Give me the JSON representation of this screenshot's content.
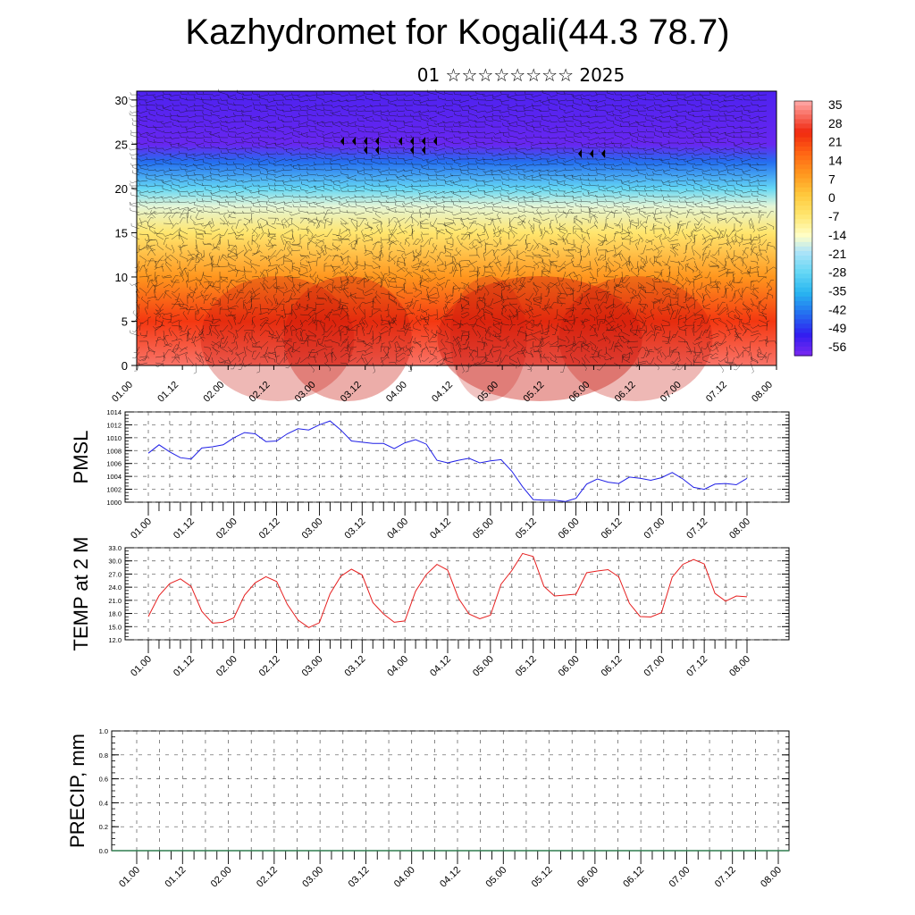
{
  "header": {
    "title": "Kazhydromet for Kogali(44.3 78.7)",
    "subtitle": "01 ☆☆☆☆☆☆☆☆ 2025"
  },
  "chart_data": [
    {
      "type": "heatmap",
      "title": "",
      "xlabel": "",
      "ylabel": "",
      "x_ticks": [
        "01.00",
        "01.12",
        "02.00",
        "02.12",
        "03.00",
        "03.12",
        "04.00",
        "04.12",
        "05.00",
        "05.12",
        "06.00",
        "06.12",
        "07.00",
        "07.12",
        "08.00"
      ],
      "y_ticks": [
        0,
        5,
        10,
        15,
        20,
        25,
        30
      ],
      "ylim": [
        0,
        31
      ],
      "colorbar_ticks": [
        35,
        28,
        21,
        14,
        7,
        0,
        -7,
        -14,
        -21,
        -28,
        -35,
        -42,
        -49,
        -56
      ],
      "colorbar_range": [
        -60,
        38
      ],
      "temperature_profile": [
        {
          "level": 0,
          "value": 33
        },
        {
          "level": 5,
          "value": 24
        },
        {
          "level": 10,
          "value": 10
        },
        {
          "level": 15,
          "value": -6
        },
        {
          "level": 18,
          "value": -16
        },
        {
          "level": 20,
          "value": -28
        },
        {
          "level": 23,
          "value": -44
        },
        {
          "level": 25,
          "value": -58
        },
        {
          "level": 31,
          "value": -55
        }
      ],
      "overlay": "wind barbs"
    },
    {
      "type": "line",
      "ylabel": "PMSL",
      "ylim": [
        1000,
        1014
      ],
      "y_ticks": [
        1000,
        1002,
        1004,
        1006,
        1008,
        1010,
        1012,
        1014
      ],
      "x_ticks": [
        "01.00",
        "01.12",
        "02.00",
        "02.12",
        "03.00",
        "03.12",
        "04.00",
        "04.12",
        "05.00",
        "05.12",
        "06.00",
        "06.12",
        "07.00",
        "07.12",
        "08.00"
      ],
      "series": [
        {
          "color": "#1f1fe6",
          "x": [
            0,
            3,
            6,
            9,
            12,
            15,
            18,
            21,
            24,
            27,
            30,
            33,
            36,
            39,
            42,
            45,
            48,
            51,
            54,
            57,
            60,
            63,
            66,
            69,
            72,
            75,
            78,
            81,
            84,
            87,
            90,
            93,
            96,
            99,
            102,
            105,
            108,
            111,
            114,
            117,
            120,
            123,
            126,
            129,
            132,
            135,
            138,
            141,
            144,
            147,
            150,
            153,
            156,
            159,
            162,
            165,
            168
          ],
          "values": [
            1007.6,
            1008.9,
            1007.8,
            1006.9,
            1006.7,
            1008.4,
            1008.6,
            1008.9,
            1010.0,
            1010.8,
            1010.6,
            1009.4,
            1009.5,
            1010.6,
            1011.4,
            1011.2,
            1012.0,
            1012.6,
            1011.2,
            1009.5,
            1009.3,
            1009.1,
            1009.1,
            1008.3,
            1009.2,
            1009.7,
            1009.0,
            1006.5,
            1006.1,
            1006.5,
            1006.8,
            1006.1,
            1006.4,
            1006.6,
            1004.8,
            1002.4,
            1000.4,
            1000.3,
            1000.3,
            1000.1,
            1000.6,
            1002.8,
            1003.6,
            1003.1,
            1002.9,
            1003.9,
            1003.7,
            1003.4,
            1003.8,
            1004.6,
            1003.6,
            1002.3,
            1002.0,
            1002.8,
            1002.9,
            1002.7,
            1003.7
          ]
        }
      ]
    },
    {
      "type": "line",
      "ylabel": "TEMP at 2 M",
      "ylim": [
        12,
        33
      ],
      "y_ticks": [
        "12.0",
        "15.0",
        "18.0",
        "21.0",
        "24.0",
        "27.0",
        "30.0",
        "33.0"
      ],
      "x_ticks": [
        "01.00",
        "01.12",
        "02.00",
        "02.12",
        "03.00",
        "03.12",
        "04.00",
        "04.12",
        "05.00",
        "05.12",
        "06.00",
        "06.12",
        "07.00",
        "07.12",
        "08.00"
      ],
      "series": [
        {
          "color": "#e61f1f",
          "x": [
            0,
            3,
            6,
            9,
            12,
            15,
            18,
            21,
            24,
            27,
            30,
            33,
            36,
            39,
            42,
            45,
            48,
            51,
            54,
            57,
            60,
            63,
            66,
            69,
            72,
            75,
            78,
            81,
            84,
            87,
            90,
            93,
            96,
            99,
            102,
            105,
            108,
            111,
            114,
            117,
            120,
            123,
            126,
            129,
            132,
            135,
            138,
            141,
            144,
            147,
            150,
            153,
            156,
            159,
            162,
            165,
            168
          ],
          "values": [
            17.3,
            22.1,
            24.8,
            25.9,
            24.2,
            18.5,
            15.8,
            16.0,
            17.0,
            22.2,
            25.0,
            26.4,
            25.3,
            20.1,
            16.5,
            14.8,
            15.9,
            22.5,
            26.5,
            28.1,
            26.8,
            20.5,
            17.9,
            16.0,
            16.3,
            23.1,
            26.9,
            29.2,
            27.9,
            21.5,
            17.9,
            16.8,
            17.6,
            24.7,
            27.8,
            31.7,
            31.0,
            24.2,
            22.0,
            22.2,
            22.4,
            27.3,
            27.7,
            28.0,
            26.4,
            20.3,
            17.3,
            17.2,
            18.2,
            26.3,
            29.2,
            30.3,
            29.3,
            22.6,
            20.8,
            22.0,
            21.8
          ]
        }
      ]
    },
    {
      "type": "bar",
      "ylabel": "PRECIP, mm",
      "ylim": [
        0,
        1
      ],
      "y_ticks": [
        "0.0",
        "0.2",
        "0.4",
        "0.6",
        "0.8",
        "1.0"
      ],
      "x_ticks": [
        "01.00",
        "01.12",
        "02.00",
        "02.12",
        "03.00",
        "03.12",
        "04.00",
        "04.12",
        "05.00",
        "05.12",
        "06.00",
        "06.12",
        "07.00",
        "07.12",
        "08.00"
      ],
      "series": [
        {
          "color": "#2e7d4f",
          "values": []
        }
      ]
    }
  ]
}
